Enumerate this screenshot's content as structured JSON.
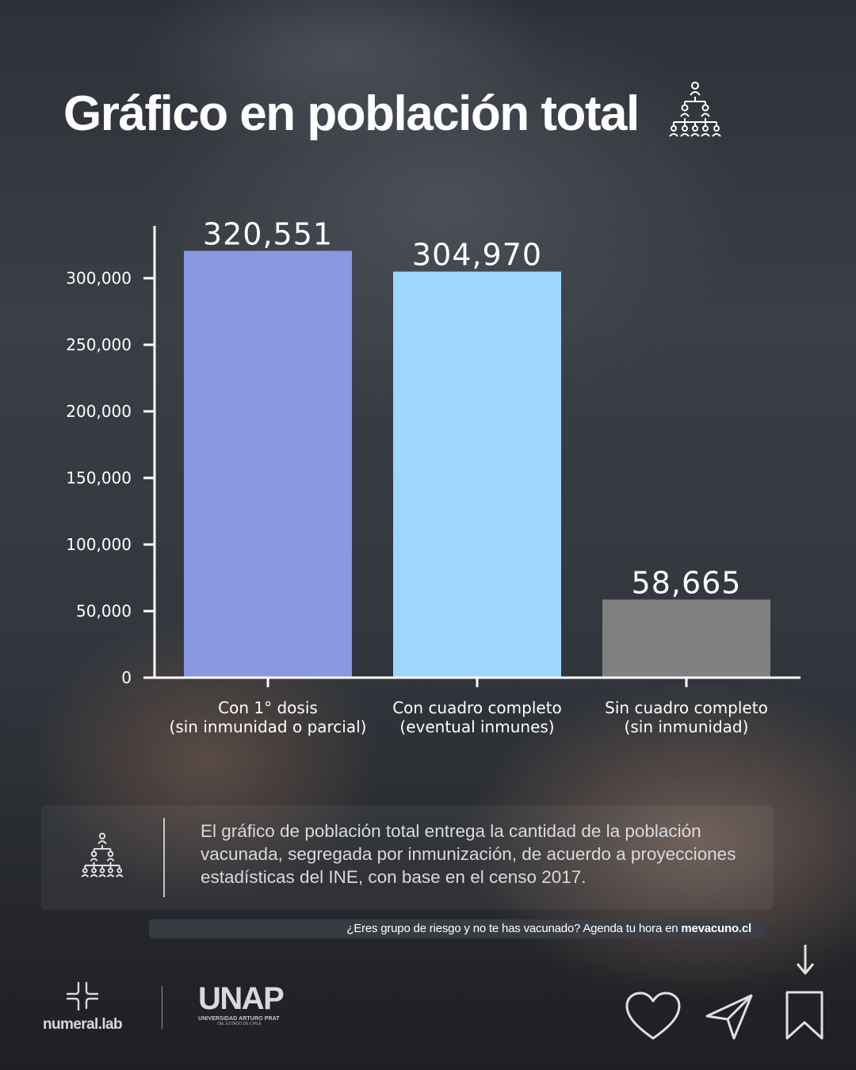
{
  "title": "Gráfico en población total",
  "icons": {
    "title_icon": "population-pyramid-icon",
    "info_icon": "population-pyramid-icon"
  },
  "colors": {
    "bar1": "#8a98e2",
    "bar2": "#9ed6ff",
    "bar3": "#808080",
    "axis": "#ffffff"
  },
  "chart_data": {
    "type": "bar",
    "title": "Gráfico en población total",
    "categories": [
      [
        "Con 1° dosis",
        "(sin inmunidad o parcial)"
      ],
      [
        "Con cuadro completo",
        "(eventual inmunes)"
      ],
      [
        "Sin cuadro completo",
        "(sin inmunidad)"
      ]
    ],
    "values": [
      320551,
      304970,
      58665
    ],
    "value_labels": [
      "320,551",
      "304,970",
      "58,665"
    ],
    "yticks": [
      0,
      50000,
      100000,
      150000,
      200000,
      250000,
      300000
    ],
    "ytick_labels": [
      "0",
      "50,000",
      "100,000",
      "150,000",
      "200,000",
      "250,000",
      "300,000"
    ],
    "ylim": [
      0,
      340000
    ],
    "xlabel": "",
    "ylabel": "",
    "grid": false
  },
  "info": {
    "text": "El gráfico de población total entrega la cantidad de la población vacunada, segregada por inmunización, de acuerdo a proyecciones estadísticas del INE, con base en el censo 2017."
  },
  "banner": {
    "text": "¿Eres grupo de riesgo y no te has vacunado? Agenda tu hora en ",
    "link": "mevacuno.cl"
  },
  "logos": {
    "numeral": "numeral.lab",
    "unap": "UNAP",
    "unap_sub": "UNIVERSIDAD ARTURO PRAT",
    "unap_sub2": "DEL ESTADO DE CHILE"
  },
  "actions": [
    "like-icon",
    "share-icon",
    "bookmark-icon"
  ]
}
